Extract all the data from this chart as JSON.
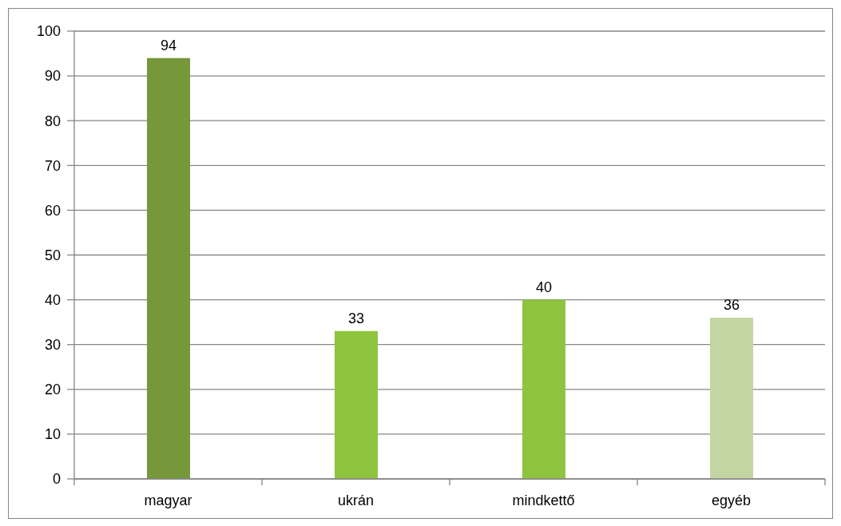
{
  "chart_data": {
    "type": "bar",
    "categories": [
      "magyar",
      "ukrán",
      "mindkettő",
      "egyéb"
    ],
    "values": [
      94,
      33,
      40,
      36
    ],
    "colors": [
      "#77983a",
      "#8fc43f",
      "#8fc43f",
      "#c3d6a2"
    ],
    "ylim": [
      0,
      100
    ],
    "yticks": [
      0,
      10,
      20,
      30,
      40,
      50,
      60,
      70,
      80,
      90,
      100
    ],
    "grid": "y",
    "data_labels": true
  }
}
